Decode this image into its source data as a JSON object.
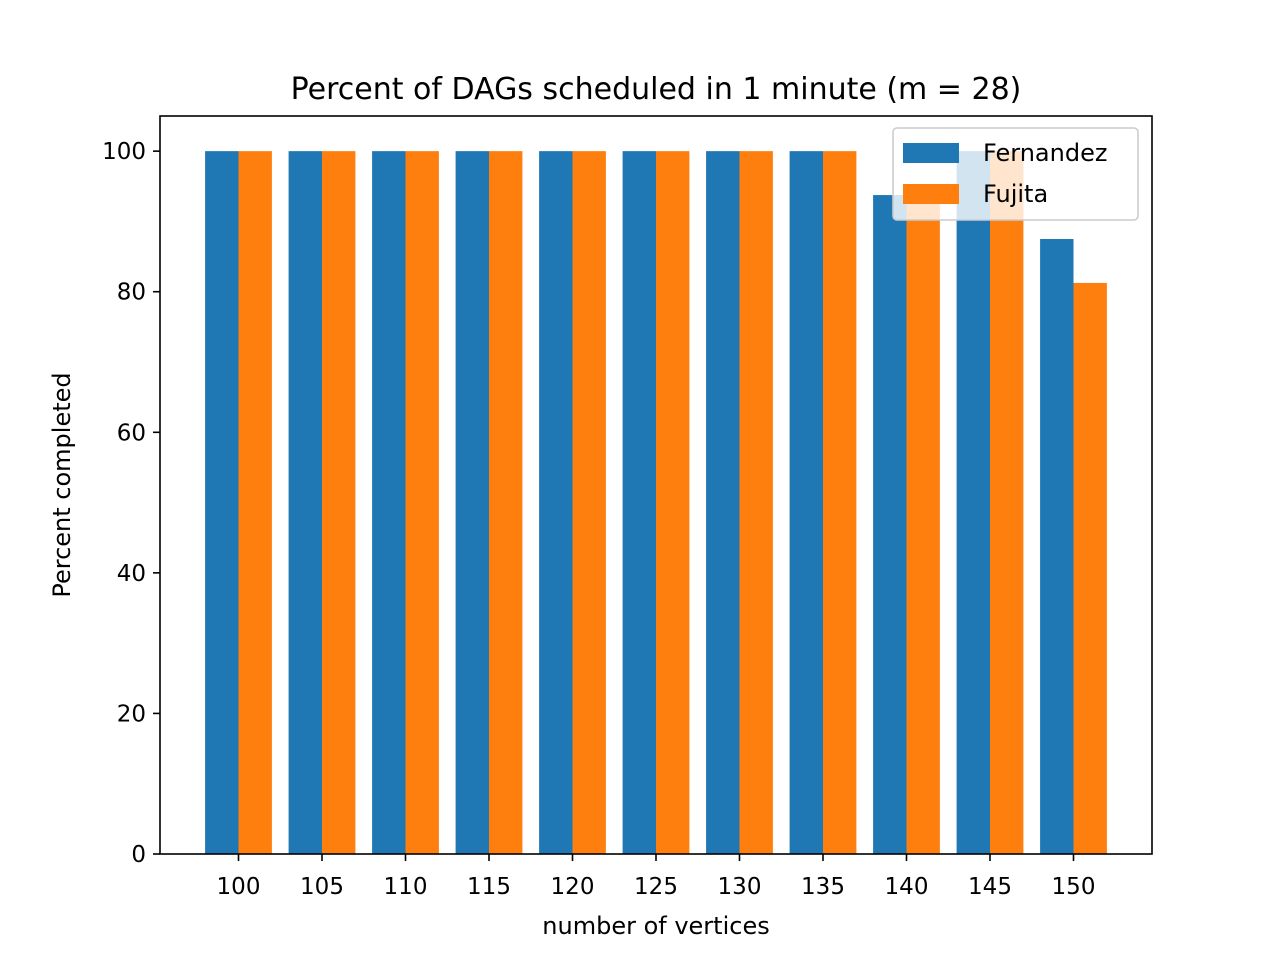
{
  "chart_data": {
    "type": "bar",
    "title": "Percent of DAGs scheduled in 1 minute (m = 28)",
    "xlabel": "number of vertices",
    "ylabel": "Percent completed",
    "categories": [
      "100",
      "105",
      "110",
      "115",
      "120",
      "125",
      "130",
      "135",
      "140",
      "145",
      "150"
    ],
    "series": [
      {
        "name": "Fernandez",
        "color": "#1f77b4",
        "values": [
          100,
          100,
          100,
          100,
          100,
          100,
          100,
          100,
          93.75,
          100,
          87.5
        ]
      },
      {
        "name": "Fujita",
        "color": "#ff7f0e",
        "values": [
          100,
          100,
          100,
          100,
          100,
          100,
          100,
          100,
          93.75,
          100,
          81.25
        ]
      }
    ],
    "yticks": [
      0,
      20,
      40,
      60,
      80,
      100
    ],
    "ylim": [
      0,
      105
    ],
    "legend_position": "top-right",
    "grid": false
  }
}
